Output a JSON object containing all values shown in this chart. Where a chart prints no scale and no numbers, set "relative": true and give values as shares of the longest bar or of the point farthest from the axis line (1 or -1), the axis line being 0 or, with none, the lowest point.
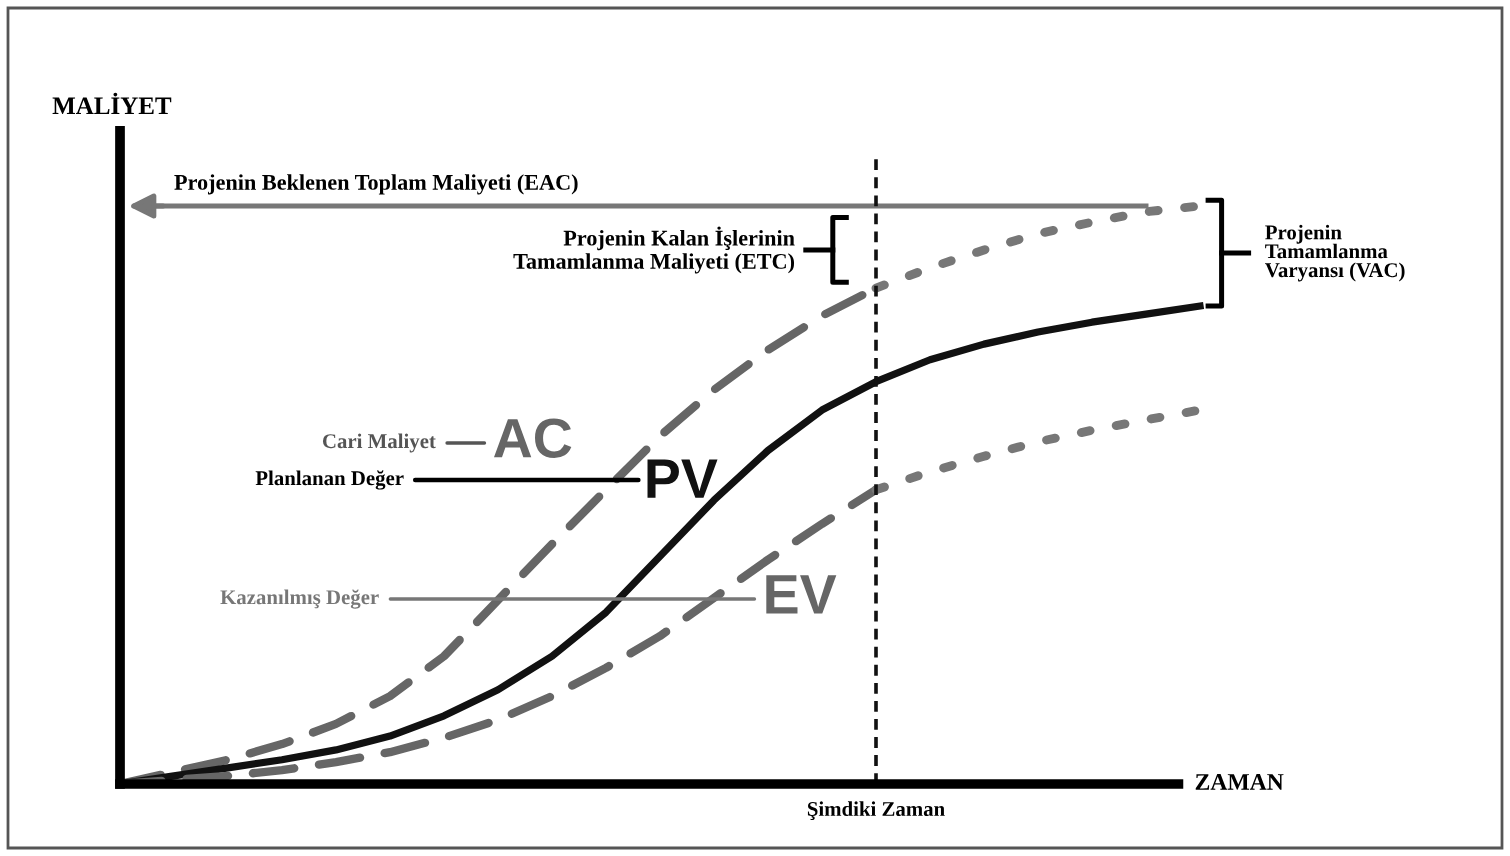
{
  "chart_data": {
    "type": "line",
    "relative": true,
    "ylabel": "MALİYET",
    "xlabel": "ZAMAN",
    "categories": [
      null,
      null,
      null,
      null,
      null,
      null,
      null,
      null,
      null,
      null,
      null,
      null,
      null,
      null,
      null,
      null,
      null,
      null,
      null,
      null,
      null
    ],
    "series": [
      {
        "name": "AC",
        "color": "#666666",
        "line_style": "dashed",
        "values": [
          0,
          0.021,
          0.042,
          0.069,
          0.104,
          0.152,
          0.221,
          0.318,
          0.415,
          0.509,
          0.602,
          0.682,
          0.751,
          0.81,
          0.858,
          null,
          null,
          null,
          null,
          null,
          null
        ]
      },
      {
        "color": "#777777",
        "line_style": "dotted",
        "values": [
          null,
          null,
          null,
          null,
          null,
          null,
          null,
          null,
          null,
          null,
          null,
          null,
          null,
          null,
          0.858,
          0.893,
          0.924,
          0.952,
          0.972,
          0.99,
          1.0
        ]
      },
      {
        "name": "PV",
        "color": "#111111",
        "line_style": "solid",
        "values": [
          0,
          0.014,
          0.028,
          0.042,
          0.059,
          0.083,
          0.118,
          0.163,
          0.221,
          0.297,
          0.394,
          0.491,
          0.577,
          0.647,
          0.696,
          0.734,
          0.761,
          0.782,
          0.799,
          0.813,
          0.827
        ]
      },
      {
        "name": "EV",
        "color": "#666666",
        "line_style": "dashed",
        "values": [
          0,
          0.007,
          0.014,
          0.024,
          0.038,
          0.055,
          0.08,
          0.111,
          0.152,
          0.201,
          0.256,
          0.322,
          0.388,
          0.45,
          0.509,
          null,
          null,
          null,
          null,
          null,
          null
        ]
      },
      {
        "color": "#777777",
        "line_style": "dotted",
        "values": [
          null,
          null,
          null,
          null,
          null,
          null,
          null,
          null,
          null,
          null,
          null,
          null,
          null,
          null,
          0.509,
          0.54,
          0.567,
          0.592,
          0.612,
          0.63,
          0.647
        ]
      }
    ],
    "ref_lines": [
      {
        "axis": "y",
        "value": 1.0,
        "label": "Projenin Beklenen Toplam Maliyeti (EAC)",
        "color": "#777777",
        "line_style": "solid"
      }
    ],
    "annotations": [
      "Projenin Kalan İşlerinin\nTamamlanma Maliyeti (ETC)",
      "Projenin\nTamamlanma\nVaryansı (VAC)",
      "Cari Maliyet",
      "Planlanan Değer",
      "Kazanılmış Değer",
      "Şimdiki Zaman"
    ],
    "grid": false,
    "legend": false,
    "marker": "none"
  }
}
